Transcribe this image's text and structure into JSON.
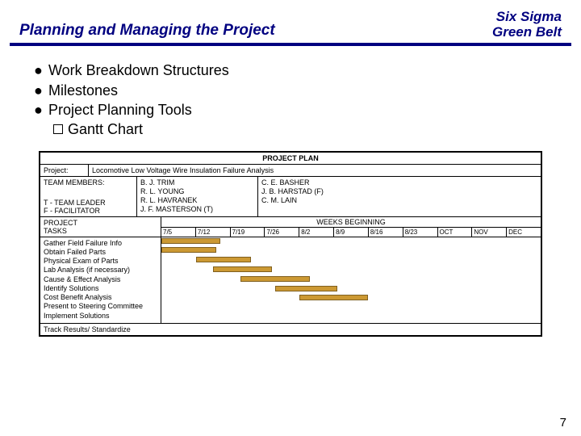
{
  "header": {
    "title": "Planning and Managing the Project",
    "brand_line1": "Six Sigma",
    "brand_line2": "Green Belt"
  },
  "bullets": {
    "items": [
      "Work Breakdown Structures",
      "Milestones",
      "Project Planning Tools"
    ],
    "sub": "Gantt Chart"
  },
  "plan": {
    "title": "PROJECT PLAN",
    "project_label": "Project:",
    "project_value": "Locomotive Low Voltage Wire Insulation Failure Analysis",
    "team_members_label": "TEAM MEMBERS:",
    "role_t": "T - TEAM LEADER",
    "role_f": "F - FACILITATOR",
    "members_col1": [
      "B. J. TRIM",
      "R. L. YOUNG",
      "R. L. HAVRANEK",
      "J. F. MASTERSON (T)"
    ],
    "members_col2": [
      "C. E. BASHER",
      "J. B. HARSTAD (F)",
      "C. M. LAIN"
    ],
    "project_tasks_label_1": "PROJECT",
    "project_tasks_label_2": "TASKS",
    "weeks_title": "WEEKS BEGINNING",
    "weeks": [
      "7/5",
      "7/12",
      "7/19",
      "7/26",
      "8/2",
      "8/9",
      "8/16",
      "8/23",
      "OCT",
      "NOV",
      "DEC"
    ],
    "tasks": [
      "Gather Field Failure Info",
      "Obtain Failed Parts",
      "Physical Exam of Parts",
      "Lab Analysis (if necessary)",
      "Cause & Effect Analysis",
      "Identify Solutions",
      "Cost Benefit Analysis",
      "Present to Steering Committee",
      "Implement Solutions"
    ],
    "track_row": "Track Results/ Standardize",
    "bars": [
      {
        "start": 0,
        "span": 1.7
      },
      {
        "start": 0,
        "span": 1.6
      },
      {
        "start": 1,
        "span": 1.6
      },
      {
        "start": 1.5,
        "span": 1.7
      },
      {
        "start": 2.3,
        "span": 2.0
      },
      {
        "start": 3.3,
        "span": 1.8
      },
      {
        "start": 4.0,
        "span": 2.0
      }
    ],
    "bar_color": "#cc9933"
  },
  "page_number": "7",
  "colors": {
    "accent": "#000080",
    "background": "#ffffff"
  }
}
